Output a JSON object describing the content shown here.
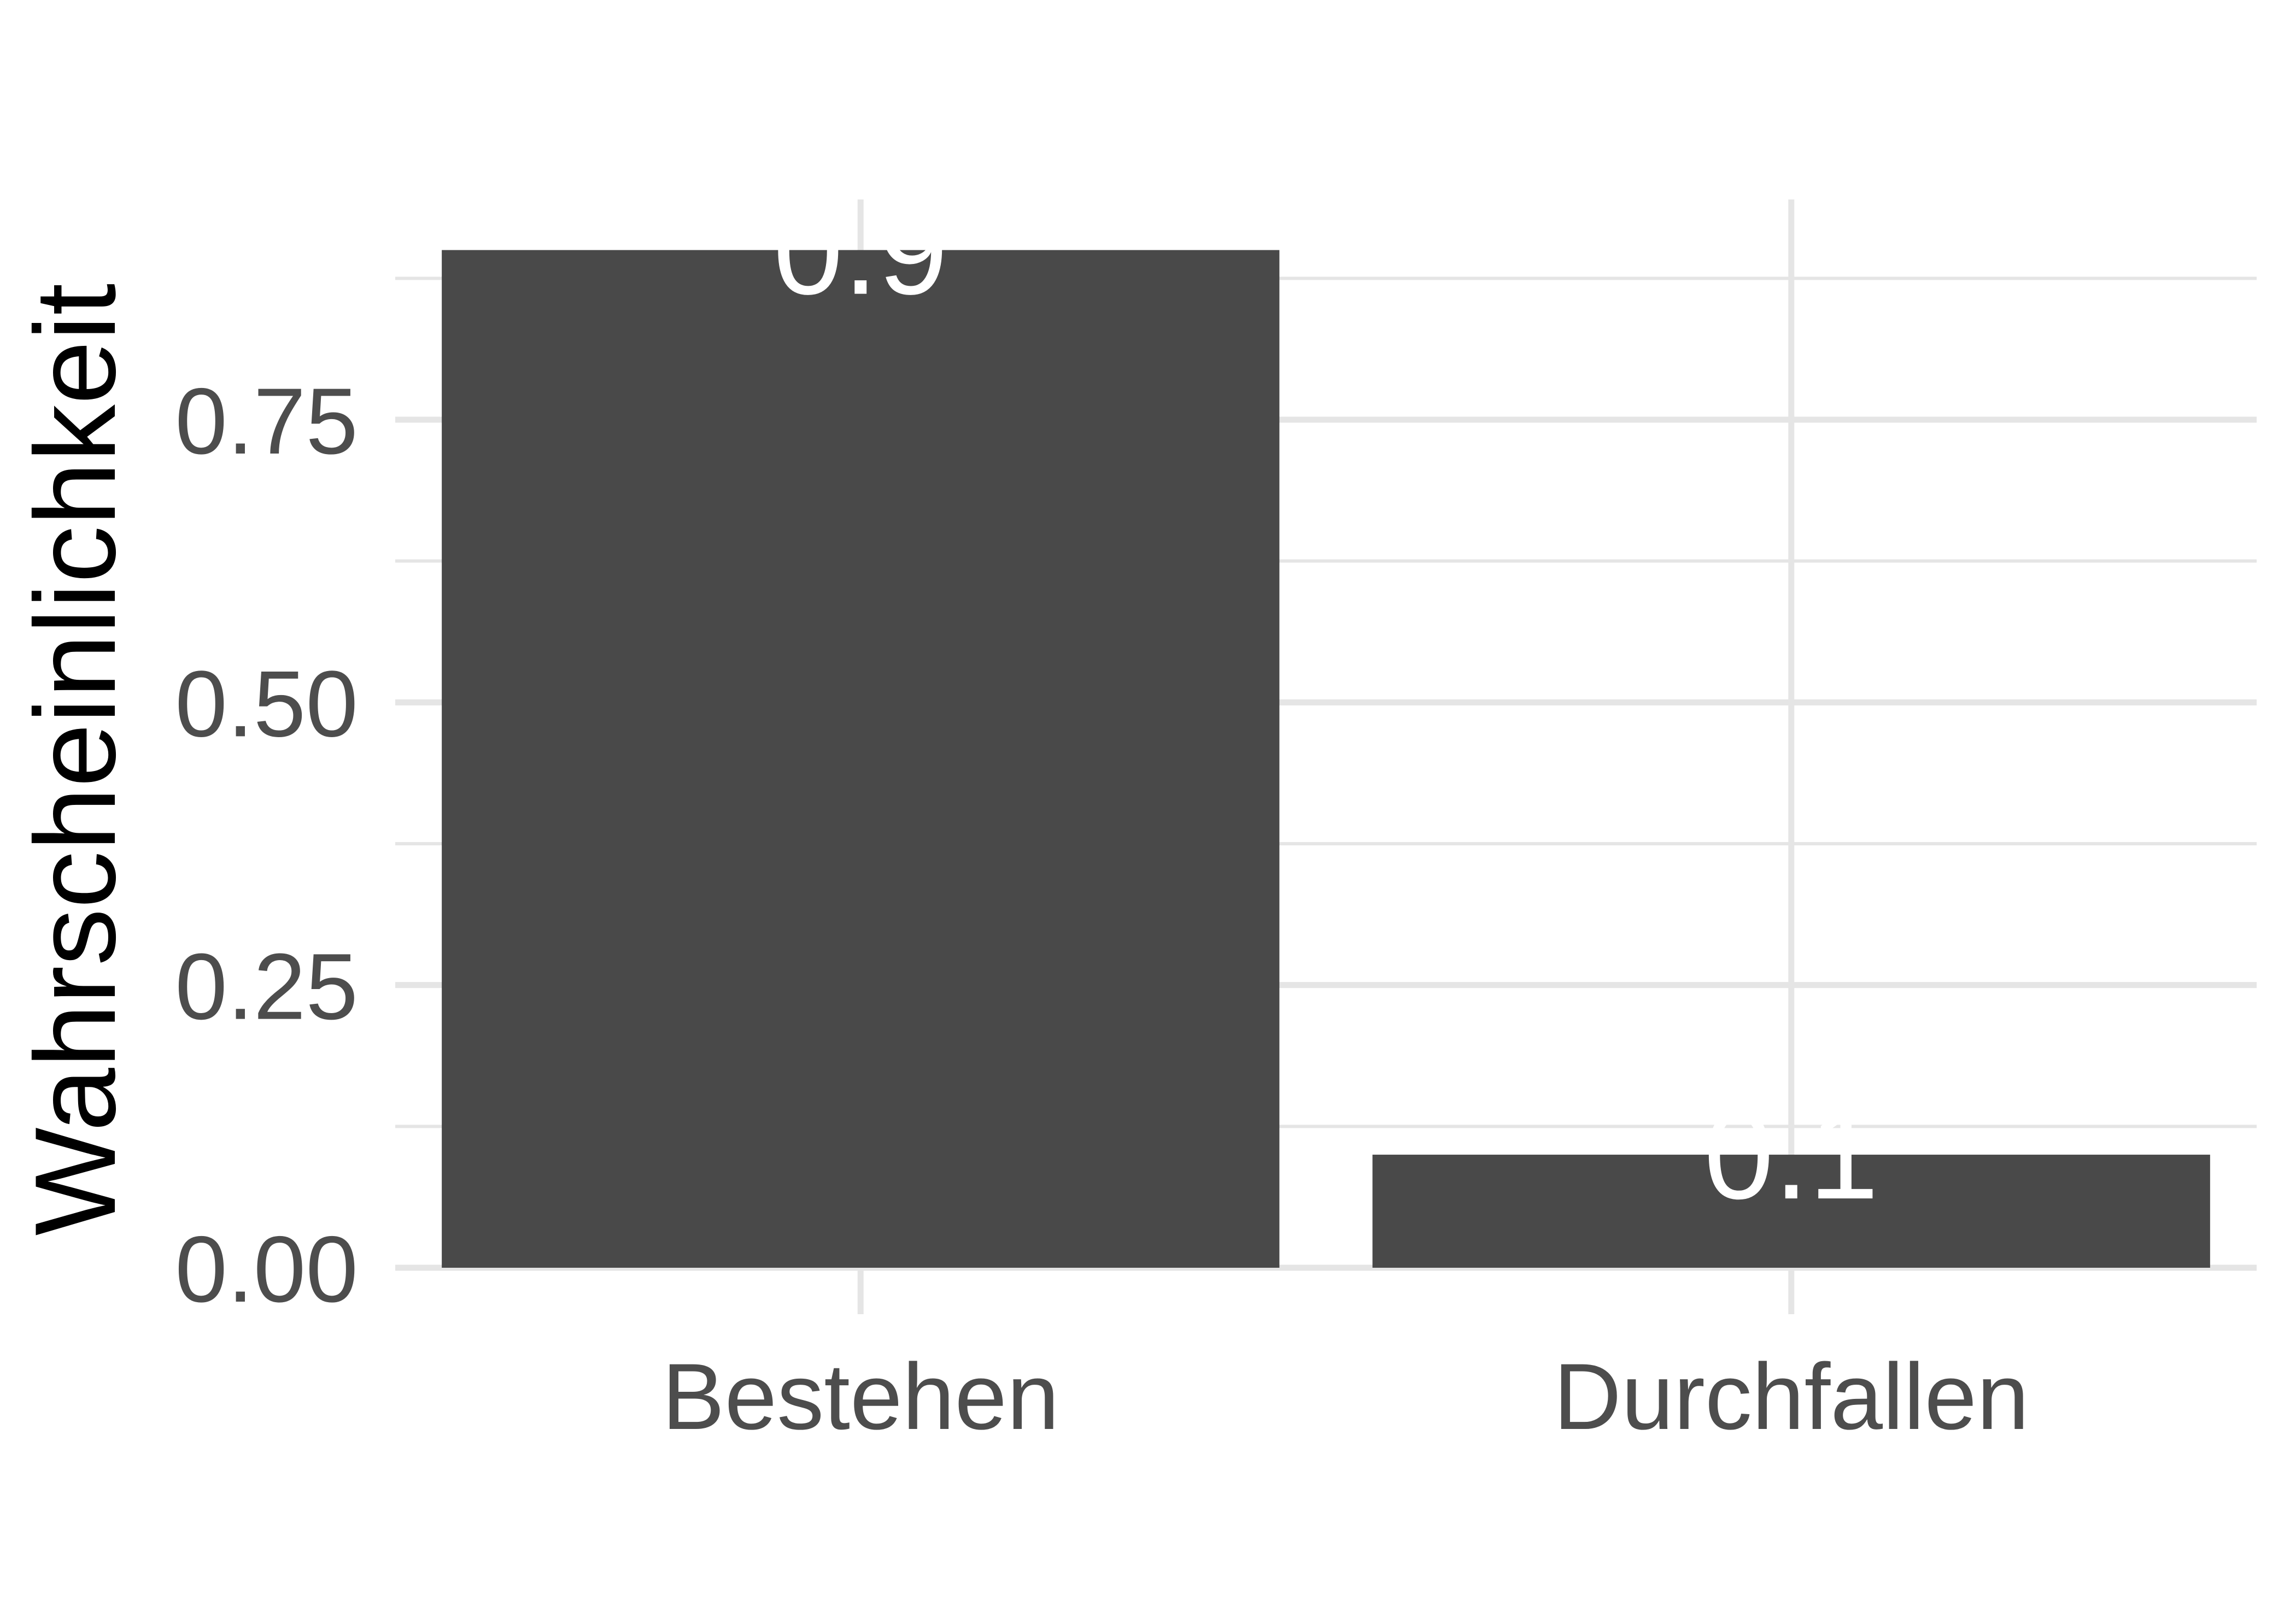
{
  "chart_data": {
    "type": "bar",
    "categories": [
      "Bestehen",
      "Durchfallen"
    ],
    "values": [
      0.9,
      0.1
    ],
    "data_labels": [
      "0.9",
      "0.1"
    ],
    "xlabel": "",
    "ylabel": "Wahrscheinlichkeit",
    "ylim": [
      0,
      0.945
    ],
    "yticks": [
      0,
      0.25,
      0.5,
      0.75
    ],
    "ytick_labels": [
      "0.00",
      "0.25",
      "0.50",
      "0.75"
    ],
    "grid": true,
    "legend": "none",
    "colors": {
      "bar": "#494949",
      "grid": "#e5e5e5",
      "background": "#ffffff",
      "data_label": "#ffffff"
    }
  }
}
